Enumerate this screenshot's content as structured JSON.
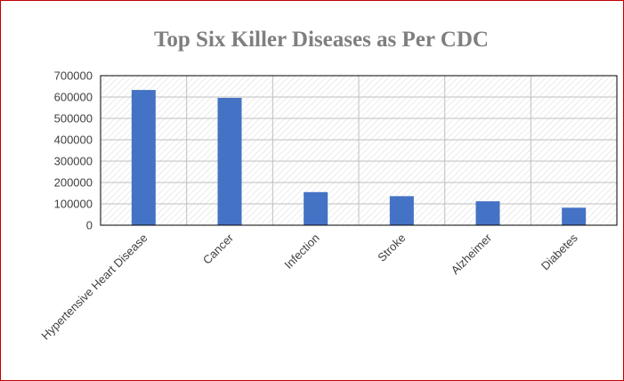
{
  "chart_data": {
    "type": "bar",
    "title": "Top Six Killer Diseases as Per CDC",
    "categories": [
      "Hypertensive Heart Disease",
      "Cancer",
      "Infection",
      "Stroke",
      "Alzheimer",
      "Diabetes"
    ],
    "values": [
      633000,
      596000,
      155000,
      136000,
      112000,
      82000
    ],
    "ylim": [
      0,
      700000
    ],
    "yticks": [
      "0",
      "100000",
      "200000",
      "300000",
      "400000",
      "500000",
      "600000",
      "700000"
    ],
    "xlabel": "",
    "ylabel": "",
    "grid": true,
    "legend": "none",
    "colors": {
      "bar": "#4472c4",
      "frame_border": "#c00000",
      "plot_border": "#000000",
      "hatch": "#d9d9d9",
      "gridline": "#bfbfbf"
    }
  }
}
